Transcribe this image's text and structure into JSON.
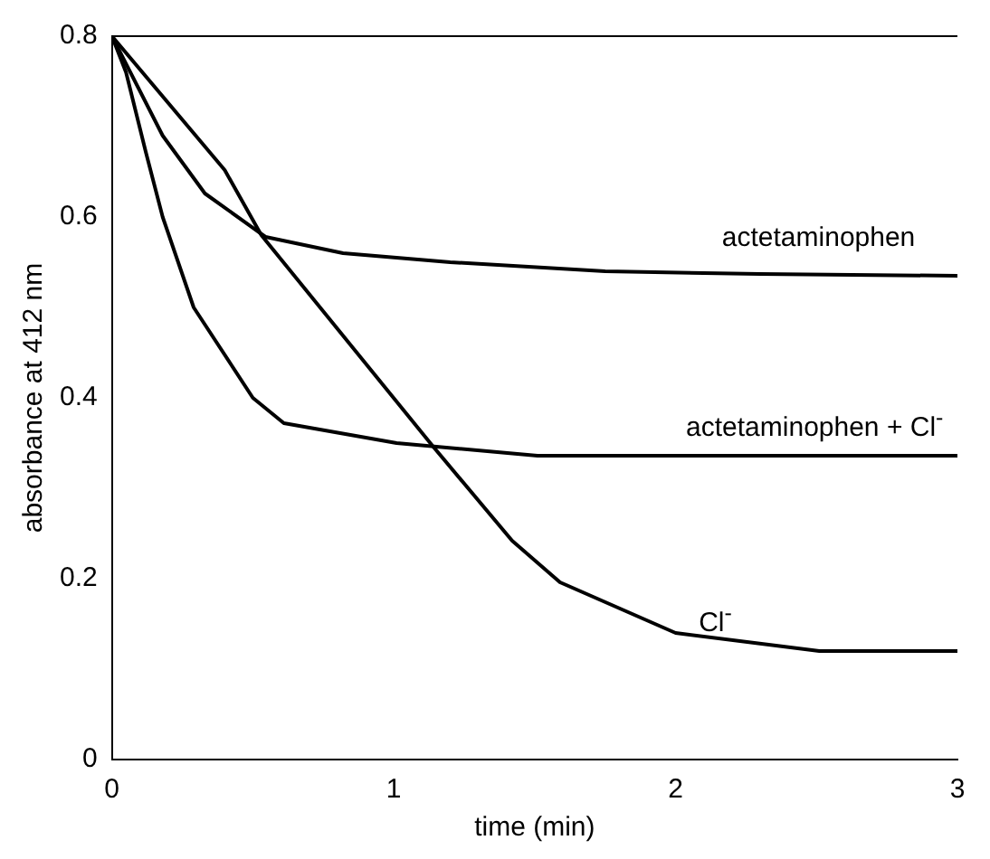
{
  "chart_data": {
    "type": "line",
    "xlabel": "time (min)",
    "ylabel": "absorbance at 412 nm",
    "xlim": [
      0,
      3
    ],
    "xticks": [
      0,
      1,
      2,
      3
    ],
    "ylim": [
      0,
      0.8
    ],
    "yticks": [
      0,
      0.2,
      0.4,
      0.6,
      0.8
    ],
    "grid": false,
    "legend": false,
    "marker": "none",
    "line_style": "solid",
    "series": [
      {
        "name": "actetaminophen",
        "color": "#000000",
        "x": [
          0,
          0.18,
          0.33,
          0.545,
          0.82,
          1.2,
          1.75,
          2.3,
          3
        ],
        "values": [
          0.8,
          0.69,
          0.626,
          0.578,
          0.56,
          0.55,
          0.54,
          0.537,
          0.535
        ]
      },
      {
        "name": "actetaminophen + Cl$^{-}$",
        "color": "#000000",
        "x": [
          0,
          0.05,
          0.12,
          0.18,
          0.29,
          0.5,
          0.61,
          1.01,
          1.51,
          2,
          3
        ],
        "values": [
          0.8,
          0.76,
          0.672,
          0.6,
          0.5,
          0.4,
          0.372,
          0.35,
          0.336,
          0.336,
          0.336
        ]
      },
      {
        "name": "Cl$^{-}$",
        "color": "#000000",
        "x": [
          0,
          0.4,
          0.53,
          1.14,
          1.42,
          1.59,
          2.0,
          2.51,
          3
        ],
        "values": [
          0.8,
          0.652,
          0.58,
          0.346,
          0.242,
          0.196,
          0.14,
          0.12,
          0.12
        ]
      }
    ]
  }
}
